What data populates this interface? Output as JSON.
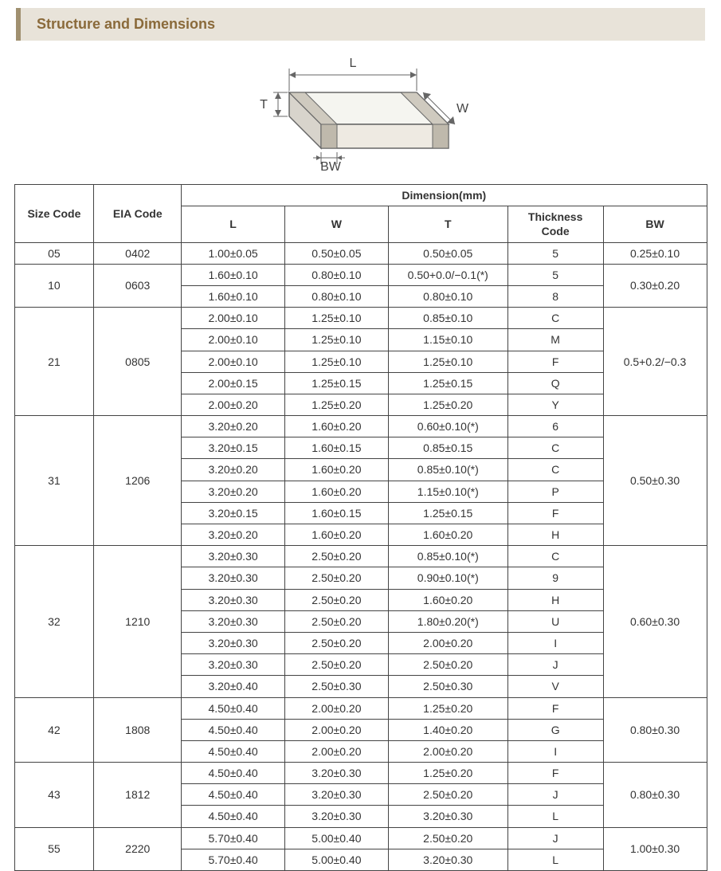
{
  "header": {
    "title": "Structure and Dimensions"
  },
  "diagram": {
    "labels": {
      "L": "L",
      "T": "T",
      "W": "W",
      "BW": "BW"
    },
    "stroke_color": "#666666",
    "fill_light": "#f5f5f0",
    "fill_dark": "#d8d4cc"
  },
  "table": {
    "columns": {
      "size_code": "Size Code",
      "eia_code": "EIA Code",
      "dimension_header": "Dimension(mm)",
      "L": "L",
      "W": "W",
      "T": "T",
      "thickness_code": "Thickness  Code",
      "BW": "BW"
    },
    "col_widths": {
      "size": 100,
      "eia": 110,
      "L": 130,
      "W": 130,
      "T": 150,
      "tc": 120,
      "BW": 130
    },
    "groups": [
      {
        "size": "05",
        "eia": "0402",
        "bw": "0.25±0.10",
        "rows": [
          {
            "L": "1.00±0.05",
            "W": "0.50±0.05",
            "T": "0.50±0.05",
            "tc": "5"
          }
        ]
      },
      {
        "size": "10",
        "eia": "0603",
        "bw": "0.30±0.20",
        "rows": [
          {
            "L": "1.60±0.10",
            "W": "0.80±0.10",
            "T": "0.50+0.0/−0.1(*)",
            "tc": "5"
          },
          {
            "L": "1.60±0.10",
            "W": "0.80±0.10",
            "T": "0.80±0.10",
            "tc": "8"
          }
        ]
      },
      {
        "size": "21",
        "eia": "0805",
        "bw": "0.5+0.2/−0.3",
        "rows": [
          {
            "L": "2.00±0.10",
            "W": "1.25±0.10",
            "T": "0.85±0.10",
            "tc": "C"
          },
          {
            "L": "2.00±0.10",
            "W": "1.25±0.10",
            "T": "1.15±0.10",
            "tc": "M"
          },
          {
            "L": "2.00±0.10",
            "W": "1.25±0.10",
            "T": "1.25±0.10",
            "tc": "F"
          },
          {
            "L": "2.00±0.15",
            "W": "1.25±0.15",
            "T": "1.25±0.15",
            "tc": "Q"
          },
          {
            "L": "2.00±0.20",
            "W": "1.25±0.20",
            "T": "1.25±0.20",
            "tc": "Y"
          }
        ]
      },
      {
        "size": "31",
        "eia": "1206",
        "bw": "0.50±0.30",
        "rows": [
          {
            "L": "3.20±0.20",
            "W": "1.60±0.20",
            "T": "0.60±0.10(*)",
            "tc": "6"
          },
          {
            "L": "3.20±0.15",
            "W": "1.60±0.15",
            "T": "0.85±0.15",
            "tc": "C"
          },
          {
            "L": "3.20±0.20",
            "W": "1.60±0.20",
            "T": "0.85±0.10(*)",
            "tc": "C"
          },
          {
            "L": "3.20±0.20",
            "W": "1.60±0.20",
            "T": "1.15±0.10(*)",
            "tc": "P"
          },
          {
            "L": "3.20±0.15",
            "W": "1.60±0.15",
            "T": "1.25±0.15",
            "tc": "F"
          },
          {
            "L": "3.20±0.20",
            "W": "1.60±0.20",
            "T": "1.60±0.20",
            "tc": "H"
          }
        ]
      },
      {
        "size": "32",
        "eia": "1210",
        "bw": "0.60±0.30",
        "rows": [
          {
            "L": "3.20±0.30",
            "W": "2.50±0.20",
            "T": "0.85±0.10(*)",
            "tc": "C"
          },
          {
            "L": "3.20±0.30",
            "W": "2.50±0.20",
            "T": "0.90±0.10(*)",
            "tc": "9"
          },
          {
            "L": "3.20±0.30",
            "W": "2.50±0.20",
            "T": "1.60±0.20",
            "tc": "H"
          },
          {
            "L": "3.20±0.30",
            "W": "2.50±0.20",
            "T": "1.80±0.20(*)",
            "tc": "U"
          },
          {
            "L": "3.20±0.30",
            "W": "2.50±0.20",
            "T": "2.00±0.20",
            "tc": "I"
          },
          {
            "L": "3.20±0.30",
            "W": "2.50±0.20",
            "T": "2.50±0.20",
            "tc": "J"
          },
          {
            "L": "3.20±0.40",
            "W": "2.50±0.30",
            "T": "2.50±0.30",
            "tc": "V"
          }
        ]
      },
      {
        "size": "42",
        "eia": "1808",
        "bw": "0.80±0.30",
        "rows": [
          {
            "L": "4.50±0.40",
            "W": "2.00±0.20",
            "T": "1.25±0.20",
            "tc": "F"
          },
          {
            "L": "4.50±0.40",
            "W": "2.00±0.20",
            "T": "1.40±0.20",
            "tc": "G"
          },
          {
            "L": "4.50±0.40",
            "W": "2.00±0.20",
            "T": "2.00±0.20",
            "tc": "I"
          }
        ]
      },
      {
        "size": "43",
        "eia": "1812",
        "bw": "0.80±0.30",
        "rows": [
          {
            "L": "4.50±0.40",
            "W": "3.20±0.30",
            "T": "1.25±0.20",
            "tc": "F"
          },
          {
            "L": "4.50±0.40",
            "W": "3.20±0.30",
            "T": "2.50±0.20",
            "tc": "J"
          },
          {
            "L": "4.50±0.40",
            "W": "3.20±0.30",
            "T": "3.20±0.30",
            "tc": "L"
          }
        ]
      },
      {
        "size": "55",
        "eia": "2220",
        "bw": "1.00±0.30",
        "rows": [
          {
            "L": "5.70±0.40",
            "W": "5.00±0.40",
            "T": "2.50±0.20",
            "tc": "J"
          },
          {
            "L": "5.70±0.40",
            "W": "5.00±0.40",
            "T": "3.20±0.30",
            "tc": "L"
          }
        ]
      }
    ]
  }
}
